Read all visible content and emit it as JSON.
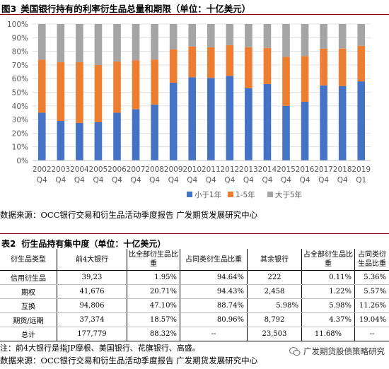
{
  "figure": {
    "number": "图3",
    "title": "美国银行持有的利率衍生品总量和期限（单位：十亿美元）"
  },
  "chart_data": {
    "type": "bar",
    "stacked": true,
    "categories": [
      [
        "2002",
        "Q4"
      ],
      [
        "2003",
        "Q4"
      ],
      [
        "2004",
        "Q4"
      ],
      [
        "2005",
        "Q4"
      ],
      [
        "2006",
        "Q4"
      ],
      [
        "2007",
        "Q4"
      ],
      [
        "2008",
        "Q4"
      ],
      [
        "2009",
        "Q4"
      ],
      [
        "2010",
        "Q4"
      ],
      [
        "2011",
        "Q4"
      ],
      [
        "2012",
        "Q4"
      ],
      [
        "2013",
        "Q4"
      ],
      [
        "2014",
        "Q4"
      ],
      [
        "2015",
        "Q4"
      ],
      [
        "2016",
        "Q4"
      ],
      [
        "2017",
        "Q4"
      ],
      [
        "2018",
        "Q4"
      ],
      [
        "2019",
        "Q1"
      ]
    ],
    "series": [
      {
        "name": "小于1年",
        "color": "#4472c4",
        "values": [
          35,
          29,
          27.5,
          28,
          35,
          37.5,
          41,
          57,
          61,
          60.5,
          62,
          53,
          56,
          40,
          43,
          55,
          54.5,
          58
        ]
      },
      {
        "name": "1-5年",
        "color": "#ed7d31",
        "values": [
          39,
          43,
          44.5,
          42,
          37.5,
          36,
          33,
          24.5,
          22.5,
          22.5,
          22.5,
          30,
          26.5,
          36,
          33.5,
          27,
          27.5,
          26
        ]
      },
      {
        "name": "大于5年",
        "color": "#a5a5a5",
        "values": [
          26,
          28,
          28,
          30,
          27.5,
          26.5,
          26,
          18.5,
          16.5,
          17,
          15.5,
          17,
          17.5,
          24,
          23.5,
          18,
          18,
          16
        ]
      }
    ],
    "yticks": [
      "0%",
      "10%",
      "20%",
      "30%",
      "40%",
      "50%",
      "60%",
      "70%",
      "80%",
      "90%",
      "100%"
    ],
    "ylim": [
      0,
      100
    ],
    "legend_position": "bottom"
  },
  "source1": "数据来源：OCC银行交易和衍生品活动季度报告 广发期货发展研究中心",
  "table": {
    "number": "表2",
    "title": "衍生品持有集中度（单位：十亿美元）",
    "headers": [
      "衍生品类型",
      "前4大银行",
      "比全部衍生品比重",
      "占同类衍生品比重",
      "其余银行",
      "占全部衍生品比重",
      "占同类衍生品比重"
    ],
    "rows": [
      [
        "信用衍生品",
        "39,23",
        "1.95%",
        "94.64%",
        "222",
        "0.11%",
        "5.36%"
      ],
      [
        "期权",
        "41,676",
        "20.71%",
        "94.43%",
        "2,458",
        "1.22%",
        "5.57%"
      ],
      [
        "互换",
        "94,806",
        "47.10%",
        "88.74%",
        "5.98%",
        "5.98%",
        "11.26%"
      ],
      [
        "期货/远期",
        "37,374",
        "18.57%",
        "80.96%",
        "8,792",
        "4.37%",
        "19.04%"
      ],
      [
        "总计",
        "177,779",
        "88.32%",
        "--",
        "23,503",
        "11.68%",
        "--"
      ]
    ]
  },
  "note": "注：前4大银行是指JP摩根、美国银行、花旗银行、高盛。",
  "source2": "数据来源：OCC银行交易和衍生品活动季度报告 广发期货发展研究中心",
  "watermark": "广发期货股债策略研究"
}
